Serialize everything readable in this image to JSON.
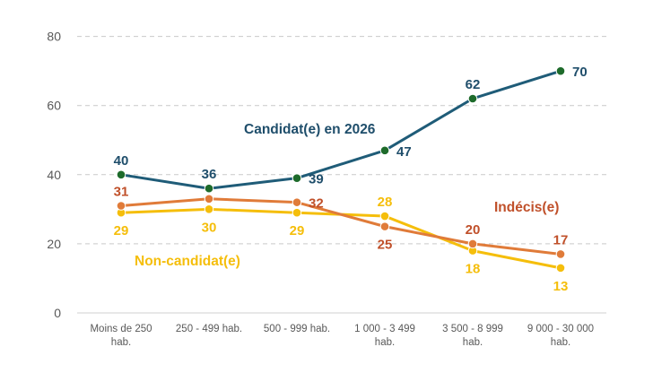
{
  "chart_data": {
    "type": "line",
    "title": "",
    "xlabel": "",
    "ylabel": "",
    "ylim": [
      0,
      80
    ],
    "yticks": [
      0,
      20,
      40,
      60,
      80
    ],
    "grid": "horizontal dashed",
    "categories": [
      [
        "Moins de 250",
        "hab."
      ],
      [
        "250 - 499 hab."
      ],
      [
        "500 - 999 hab."
      ],
      [
        "1 000 - 3 499",
        "hab."
      ],
      [
        "3 500 - 8 999",
        "hab."
      ],
      [
        "9 000 - 30 000",
        "hab."
      ]
    ],
    "series": [
      {
        "name": "Candidat(e) en 2026",
        "values": [
          40,
          36,
          39,
          47,
          62,
          70
        ],
        "line_color": "#1F5C78",
        "marker_color": "#1E6B2B",
        "label_color": "#1F4E6B",
        "label_pos": [
          "above",
          "above",
          "right",
          "right",
          "above",
          "right"
        ]
      },
      {
        "name": "Indécis(e)",
        "values": [
          31,
          33,
          32,
          25,
          20,
          17
        ],
        "line_color": "#E07B39",
        "marker_color": "#E07B39",
        "label_color": "#C0502A",
        "label_pos": [
          "above",
          "none",
          "right",
          "below",
          "above",
          "above"
        ]
      },
      {
        "name": "Non-candidat(e)",
        "values": [
          29,
          30,
          29,
          28,
          18,
          13
        ],
        "line_color": "#F5BE0B",
        "marker_color": "#F5BE0B",
        "label_color": "#F5BE0B",
        "label_pos": [
          "below",
          "below",
          "below",
          "above",
          "below",
          "below"
        ]
      }
    ]
  }
}
